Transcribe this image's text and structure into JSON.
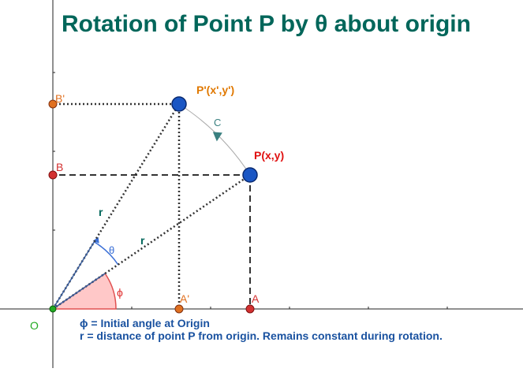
{
  "title": "Rotation of Point P by θ about origin",
  "notes": [
    "ϕ = Initial angle at Origin",
    "r = distance of point P from origin. Remains constant during rotation."
  ],
  "labels": {
    "origin": "O",
    "p": "P(x,y)",
    "p_prime": "P'(x',y')",
    "a": "A",
    "a_prime": "A'",
    "b": "B",
    "b_prime": "B'",
    "arc": "C",
    "r": "r",
    "theta": "θ",
    "phi": "ϕ"
  },
  "colors": {
    "title": "#00665a",
    "notes": "#1a52a0",
    "point_fill": "#1a56c4",
    "p_label": "#e01010",
    "p_prime_label": "#e07800",
    "a_b_points": "#d33030",
    "primed_points": "#e07020",
    "origin": "#22aa22",
    "phi_sector": "#ffc8c8"
  },
  "chart_data": {
    "type": "diagram",
    "origin": [
      0,
      0
    ],
    "points": {
      "P": [
        2.5,
        1.7
      ],
      "P_prime": [
        1.6,
        2.6
      ],
      "A": [
        2.5,
        0
      ],
      "A_prime": [
        1.6,
        0
      ],
      "B": [
        0,
        1.7
      ],
      "B_prime": [
        0,
        2.6
      ]
    }
  }
}
